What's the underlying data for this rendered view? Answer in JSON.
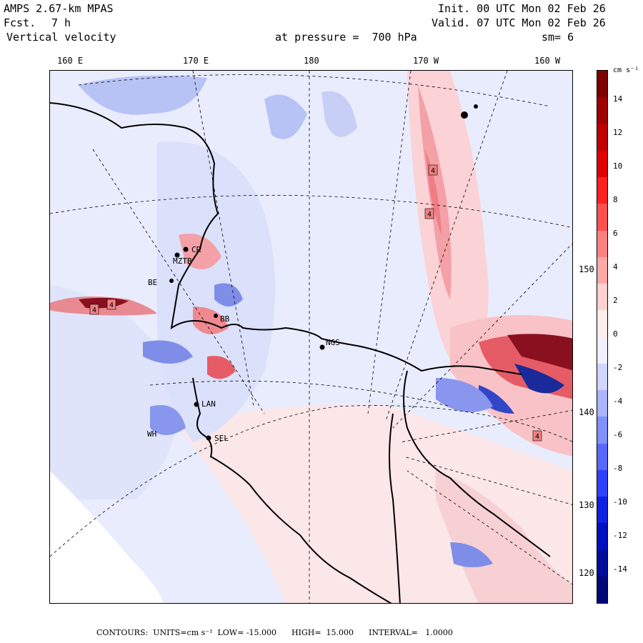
{
  "header": {
    "model": "AMPS 2.67-km MPAS",
    "forecast_label": "Fcst.",
    "forecast_hours": "7 h",
    "variable": "Vertical velocity",
    "init": "Init. 00 UTC Mon 02 Feb 26",
    "valid": "Valid. 07 UTC Mon 02 Feb 26",
    "pressure": "at pressure =  700 hPa",
    "smoothing": "sm= 6"
  },
  "longitude_labels": [
    "160 E",
    "170 E",
    "180",
    "170 W",
    "160 W"
  ],
  "right_labels": [
    "150 W",
    "140 W",
    "130 W",
    "120 W"
  ],
  "stations": [
    "CR",
    "MZTB",
    "BE",
    "BB",
    "NGS",
    "LAN",
    "SEL",
    "WH"
  ],
  "contour_labels": [
    "4",
    "4",
    "4",
    "4",
    "4"
  ],
  "colorbar": {
    "units": "cm s⁻¹",
    "ticks": [
      "14",
      "12",
      "10",
      "8",
      "6",
      "4",
      "2",
      "0",
      "-2",
      "-4",
      "-6",
      "-8",
      "-10",
      "-12",
      "-14"
    ],
    "colors": [
      "#7f0000",
      "#a00000",
      "#c00000",
      "#e00000",
      "#ff2020",
      "#ff5050",
      "#ff8080",
      "#ffa8a8",
      "#ffd0d0",
      "#ffecec",
      "#eef0ff",
      "#d0d6ff",
      "#aab4ff",
      "#8090ff",
      "#5868ff",
      "#3040ff",
      "#1020e0",
      "#0010c0",
      "#000c9c",
      "#000878"
    ]
  },
  "footer": "CONTOURS:  UNITS=cm s⁻¹  LOW= -15.000      HIGH=  15.000      INTERVAL=   1.0000",
  "colors": {
    "positive": "#f08080",
    "negative": "#8090f0",
    "neutral": "#e8ecfb",
    "coast": "#000000"
  }
}
